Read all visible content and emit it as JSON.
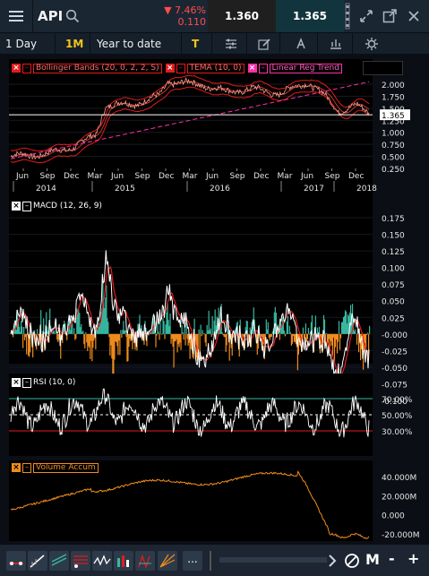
{
  "header": {
    "symbol": "API",
    "change_pct": "▼ 7.46%",
    "change_abs": "0.110",
    "bid": "1.360",
    "ask": "1.365"
  },
  "toolbar": {
    "interval": "1 Day",
    "range_btn": "1M",
    "period": "Year to date",
    "type_btn": "T"
  },
  "price_panel": {
    "legend": [
      "Bollinger Bands (20, 0, 2, 2, S)",
      "TEMA (10, 0)",
      "Linear Reg Trend"
    ],
    "y_ticks": [
      "2.000",
      "1.750",
      "1.500",
      "1.250",
      "1.000",
      "0.750",
      "0.500",
      "0.250"
    ],
    "last_price": "1.365",
    "x_months": [
      "Jun",
      "Sep",
      "Dec",
      "Mar",
      "Jun",
      "Sep",
      "Dec",
      "Mar",
      "Jun",
      "Sep",
      "Dec",
      "Mar",
      "Jun",
      "Sep",
      "Dec"
    ],
    "x_years": [
      "2014",
      "2015",
      "2016",
      "2017",
      "2018"
    ]
  },
  "macd_panel": {
    "legend": "MACD (12, 26, 9)",
    "y_ticks": [
      "0.175",
      "0.150",
      "0.125",
      "0.100",
      "0.075",
      "0.050",
      "0.025",
      "-0.000",
      "-0.025",
      "-0.050",
      "-0.075",
      "-0.100"
    ]
  },
  "rsi_panel": {
    "legend": "RSI (10, 0)",
    "y_ticks": [
      "70.00%",
      "50.00%",
      "30.00%"
    ]
  },
  "volume_panel": {
    "legend": "Volume Accum",
    "y_ticks": [
      "40.000M",
      "20.000M",
      "0.000",
      "-20.000M"
    ]
  },
  "bottom_bar": {
    "more": "...",
    "m_label": "M",
    "minus": "-",
    "plus": "+"
  },
  "colors": {
    "bollinger": "#e31b1b",
    "tema": "#ff9a8a",
    "linreg": "#ff2fa8",
    "macd_line": "#ffffff",
    "macd_signal": "#e31b1b",
    "hist_pos": "#37b8a0",
    "hist_neg": "#f08c1c",
    "rsi": "#ffffff",
    "rsi_upper": "#37b8a0",
    "rsi_lower": "#e31b1b",
    "volume": "#f08c1c"
  }
}
